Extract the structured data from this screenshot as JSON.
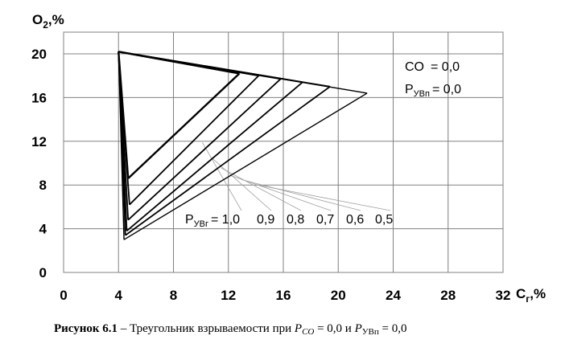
{
  "chart_data": {
    "type": "line",
    "xlabel": "C",
    "xlabel_sub": "г",
    "xlabel_unit": ",%",
    "ylabel": "O",
    "ylabel_sub": "2",
    "ylabel_unit": ",%",
    "xlim": [
      0,
      32
    ],
    "ylim": [
      0,
      20
    ],
    "x_ticks": [
      0,
      4,
      8,
      12,
      16,
      20,
      24,
      28,
      32
    ],
    "y_ticks": [
      0,
      4,
      8,
      12,
      16,
      20
    ],
    "grid": true,
    "peak": {
      "x": 4.0,
      "y": 20.2
    },
    "series": [
      {
        "p": "1,0",
        "upper": {
          "x": 12.8,
          "y": 18.2
        },
        "lower": {
          "x": 4.7,
          "y": 8.6
        }
      },
      {
        "p": "0,9",
        "upper": {
          "x": 14.2,
          "y": 18.0
        },
        "lower": {
          "x": 4.8,
          "y": 6.2
        }
      },
      {
        "p": "0,8",
        "upper": {
          "x": 15.8,
          "y": 17.7
        },
        "lower": {
          "x": 4.7,
          "y": 4.8
        }
      },
      {
        "p": "0,7",
        "upper": {
          "x": 17.4,
          "y": 17.4
        },
        "lower": {
          "x": 4.6,
          "y": 3.8
        }
      },
      {
        "p": "0,6",
        "upper": {
          "x": 19.4,
          "y": 17.0
        },
        "lower": {
          "x": 4.5,
          "y": 3.4
        }
      },
      {
        "p": "0,5",
        "upper": {
          "x": 22.1,
          "y": 16.4
        },
        "lower": {
          "x": 4.4,
          "y": 3.0
        }
      }
    ],
    "annotation_co": {
      "label": "CO",
      "equals": "= 0,0"
    },
    "annotation_puvp": {
      "label": "P",
      "sub": "УВп",
      "equals": "= 0,0"
    },
    "pug_label": {
      "label": "P",
      "sub": "УВг",
      "equals": "= 1,0"
    },
    "pug_values": [
      "0,9",
      "0,8",
      "0,7",
      "0,6",
      "0,5"
    ]
  },
  "caption": {
    "bold": "Рисунок 6.1",
    "text": " – Треугольник взрываемости при ",
    "p1": "P",
    "p1_sub": "CO",
    "eq1": " = 0,0 и ",
    "p2": "P",
    "p2_sub": "УВп",
    "eq2": " = 0,0"
  }
}
